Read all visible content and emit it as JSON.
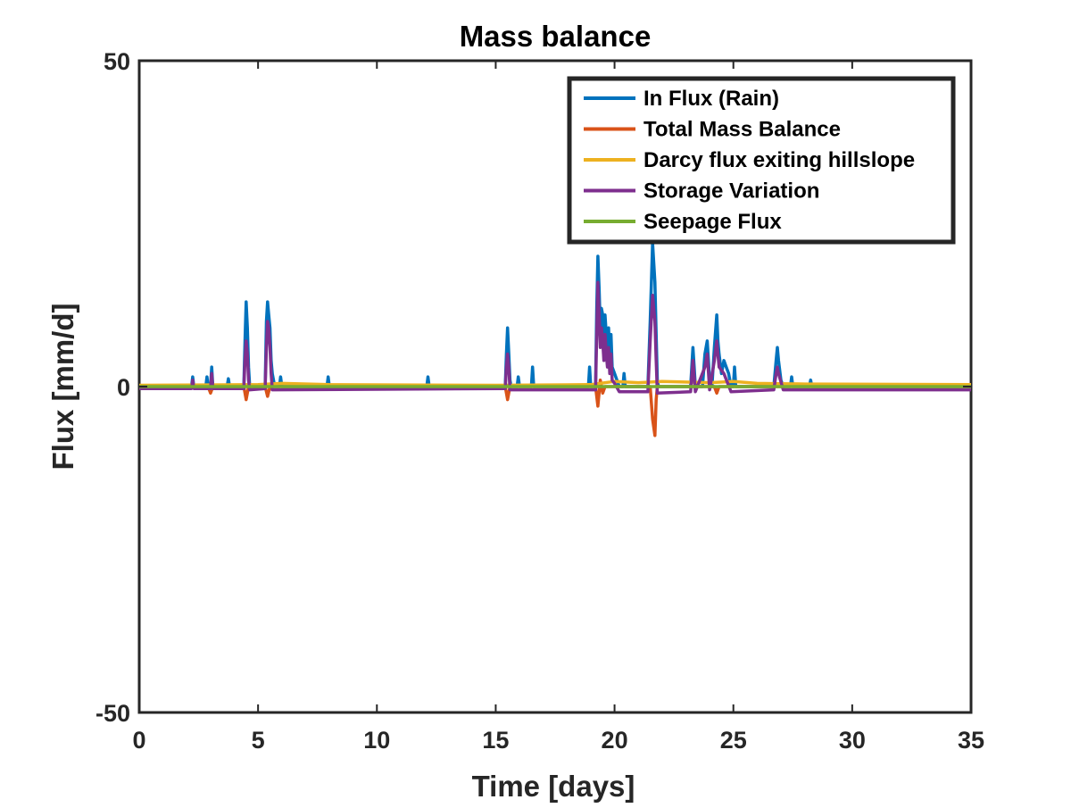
{
  "chart_data": {
    "type": "line",
    "title": "Mass balance",
    "xlabel": "Time [days]",
    "ylabel": "Flux [mm/d]",
    "xlim": [
      0,
      35
    ],
    "ylim": [
      -50,
      50
    ],
    "xticks": [
      "0",
      "5",
      "10",
      "15",
      "20",
      "25",
      "30",
      "35"
    ],
    "yticks": [
      "-50",
      "0",
      "50"
    ],
    "grid": false,
    "legend_position": "top-right",
    "series": [
      {
        "name": "In Flux (Rain)",
        "color": "#0072BD",
        "points": [
          [
            0,
            0
          ],
          [
            2.2,
            0
          ],
          [
            2.25,
            1.5
          ],
          [
            2.3,
            0
          ],
          [
            2.8,
            0
          ],
          [
            2.85,
            1.5
          ],
          [
            2.9,
            0
          ],
          [
            3.0,
            0
          ],
          [
            3.05,
            3
          ],
          [
            3.1,
            0
          ],
          [
            3.7,
            0
          ],
          [
            3.75,
            1.2
          ],
          [
            3.8,
            0
          ],
          [
            4.4,
            0
          ],
          [
            4.45,
            7
          ],
          [
            4.5,
            13
          ],
          [
            4.55,
            9
          ],
          [
            4.6,
            3
          ],
          [
            4.65,
            0
          ],
          [
            5.3,
            0
          ],
          [
            5.35,
            10
          ],
          [
            5.4,
            13
          ],
          [
            5.45,
            11
          ],
          [
            5.5,
            9
          ],
          [
            5.55,
            4
          ],
          [
            5.6,
            2
          ],
          [
            5.7,
            0
          ],
          [
            5.9,
            0
          ],
          [
            5.95,
            1.5
          ],
          [
            6.0,
            0
          ],
          [
            7.9,
            0
          ],
          [
            7.95,
            1.5
          ],
          [
            8.0,
            0
          ],
          [
            12.1,
            0
          ],
          [
            12.15,
            1.5
          ],
          [
            12.2,
            0
          ],
          [
            15.4,
            0
          ],
          [
            15.45,
            5
          ],
          [
            15.5,
            9
          ],
          [
            15.55,
            5
          ],
          [
            15.6,
            1
          ],
          [
            15.65,
            0
          ],
          [
            15.9,
            0
          ],
          [
            15.95,
            1.5
          ],
          [
            16.0,
            0
          ],
          [
            16.5,
            0
          ],
          [
            16.55,
            3
          ],
          [
            16.6,
            0
          ],
          [
            18.9,
            0
          ],
          [
            18.95,
            3
          ],
          [
            19.0,
            0
          ],
          [
            19.2,
            0
          ],
          [
            19.25,
            12
          ],
          [
            19.3,
            20
          ],
          [
            19.35,
            15
          ],
          [
            19.4,
            9
          ],
          [
            19.45,
            12
          ],
          [
            19.5,
            11
          ],
          [
            19.55,
            6
          ],
          [
            19.6,
            11
          ],
          [
            19.65,
            8
          ],
          [
            19.7,
            5
          ],
          [
            19.75,
            9
          ],
          [
            19.8,
            4
          ],
          [
            19.85,
            8
          ],
          [
            19.9,
            3
          ],
          [
            20.0,
            2
          ],
          [
            20.1,
            1
          ],
          [
            20.2,
            0
          ],
          [
            20.35,
            0
          ],
          [
            20.4,
            2
          ],
          [
            20.45,
            0
          ],
          [
            21.4,
            0
          ],
          [
            21.5,
            10
          ],
          [
            21.6,
            22
          ],
          [
            21.7,
            16
          ],
          [
            21.75,
            8
          ],
          [
            21.8,
            1
          ],
          [
            21.85,
            0
          ],
          [
            23.2,
            0
          ],
          [
            23.25,
            3
          ],
          [
            23.3,
            6
          ],
          [
            23.35,
            3
          ],
          [
            23.4,
            0
          ],
          [
            23.7,
            0
          ],
          [
            23.8,
            5
          ],
          [
            23.9,
            7
          ],
          [
            23.95,
            4
          ],
          [
            24.0,
            1
          ],
          [
            24.1,
            0
          ],
          [
            24.2,
            6
          ],
          [
            24.3,
            11
          ],
          [
            24.35,
            7
          ],
          [
            24.4,
            5
          ],
          [
            24.5,
            2
          ],
          [
            24.6,
            4
          ],
          [
            24.7,
            3
          ],
          [
            24.8,
            2
          ],
          [
            24.9,
            0
          ],
          [
            25.0,
            0
          ],
          [
            25.05,
            3
          ],
          [
            25.1,
            0
          ],
          [
            26.7,
            0
          ],
          [
            26.8,
            4
          ],
          [
            26.85,
            6
          ],
          [
            26.9,
            4
          ],
          [
            27.0,
            1
          ],
          [
            27.1,
            0
          ],
          [
            27.4,
            0
          ],
          [
            27.45,
            1.5
          ],
          [
            27.5,
            0
          ],
          [
            28.2,
            0
          ],
          [
            28.25,
            1
          ],
          [
            28.3,
            0
          ],
          [
            35,
            0
          ]
        ]
      },
      {
        "name": "Total Mass Balance",
        "color": "#D95319",
        "points": [
          [
            0,
            0
          ],
          [
            2.9,
            0
          ],
          [
            3.0,
            -1
          ],
          [
            3.1,
            0
          ],
          [
            4.4,
            0
          ],
          [
            4.5,
            -2
          ],
          [
            4.6,
            0
          ],
          [
            5.3,
            0
          ],
          [
            5.4,
            -1.5
          ],
          [
            5.5,
            0
          ],
          [
            15.4,
            0
          ],
          [
            15.5,
            -2
          ],
          [
            15.6,
            0
          ],
          [
            19.2,
            0
          ],
          [
            19.3,
            -3
          ],
          [
            19.4,
            1
          ],
          [
            19.5,
            -1
          ],
          [
            19.6,
            0
          ],
          [
            21.5,
            0
          ],
          [
            21.6,
            -5
          ],
          [
            21.7,
            -7.5
          ],
          [
            21.75,
            -2
          ],
          [
            21.8,
            0
          ],
          [
            24.2,
            0
          ],
          [
            24.3,
            -1
          ],
          [
            24.4,
            0
          ],
          [
            35,
            0
          ]
        ]
      },
      {
        "name": "Darcy flux exiting hillslope",
        "color": "#EDB120",
        "points": [
          [
            0,
            0.2
          ],
          [
            5,
            0.3
          ],
          [
            6,
            0.5
          ],
          [
            8,
            0.3
          ],
          [
            15,
            0.2
          ],
          [
            19,
            0.3
          ],
          [
            20,
            0.8
          ],
          [
            21,
            0.6
          ],
          [
            22,
            0.8
          ],
          [
            24,
            0.6
          ],
          [
            25,
            0.8
          ],
          [
            26,
            0.5
          ],
          [
            28,
            0.4
          ],
          [
            35,
            0.3
          ]
        ]
      },
      {
        "name": "Storage Variation",
        "color": "#7E2F8E",
        "points": [
          [
            0,
            -0.3
          ],
          [
            2.2,
            -0.3
          ],
          [
            2.25,
            1
          ],
          [
            2.3,
            -0.3
          ],
          [
            3.0,
            -0.3
          ],
          [
            3.05,
            2
          ],
          [
            3.1,
            -0.3
          ],
          [
            4.4,
            -0.3
          ],
          [
            4.45,
            4
          ],
          [
            4.5,
            7
          ],
          [
            4.55,
            5
          ],
          [
            4.6,
            1
          ],
          [
            4.65,
            -0.5
          ],
          [
            5.3,
            -0.3
          ],
          [
            5.35,
            6
          ],
          [
            5.4,
            10
          ],
          [
            5.45,
            9
          ],
          [
            5.5,
            6
          ],
          [
            5.55,
            2
          ],
          [
            5.6,
            -0.5
          ],
          [
            15.4,
            -0.3
          ],
          [
            15.45,
            3
          ],
          [
            15.5,
            5
          ],
          [
            15.55,
            3
          ],
          [
            15.6,
            -0.5
          ],
          [
            19.2,
            -0.5
          ],
          [
            19.25,
            8
          ],
          [
            19.3,
            16
          ],
          [
            19.35,
            11
          ],
          [
            19.4,
            6
          ],
          [
            19.45,
            9
          ],
          [
            19.5,
            7
          ],
          [
            19.55,
            4
          ],
          [
            19.6,
            8
          ],
          [
            19.65,
            5
          ],
          [
            19.7,
            3
          ],
          [
            19.75,
            6
          ],
          [
            19.8,
            2
          ],
          [
            19.85,
            5
          ],
          [
            19.9,
            1
          ],
          [
            20.0,
            0.5
          ],
          [
            20.2,
            -0.8
          ],
          [
            21.4,
            -0.8
          ],
          [
            21.5,
            7
          ],
          [
            21.6,
            14
          ],
          [
            21.7,
            10
          ],
          [
            21.75,
            4
          ],
          [
            21.8,
            -1
          ],
          [
            23.2,
            -0.8
          ],
          [
            23.3,
            4
          ],
          [
            23.4,
            -0.8
          ],
          [
            23.8,
            3
          ],
          [
            23.9,
            5
          ],
          [
            24.0,
            -0.5
          ],
          [
            24.2,
            4
          ],
          [
            24.3,
            7
          ],
          [
            24.4,
            3
          ],
          [
            24.6,
            2
          ],
          [
            24.9,
            -0.8
          ],
          [
            26.7,
            -0.5
          ],
          [
            26.8,
            2
          ],
          [
            26.85,
            3
          ],
          [
            26.9,
            2
          ],
          [
            27.1,
            -0.5
          ],
          [
            35,
            -0.5
          ]
        ]
      },
      {
        "name": "Seepage Flux",
        "color": "#77AC30",
        "points": [
          [
            0,
            0
          ],
          [
            35,
            0
          ]
        ]
      }
    ]
  }
}
